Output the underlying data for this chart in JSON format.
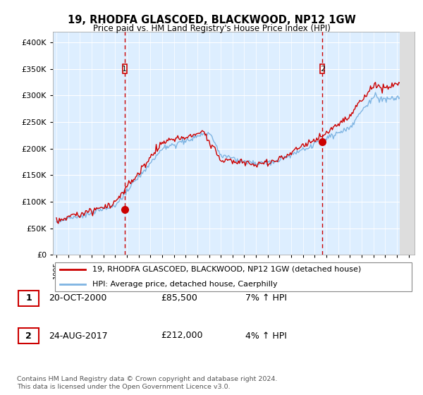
{
  "title": "19, RHODFA GLASCOED, BLACKWOOD, NP12 1GW",
  "subtitle": "Price paid vs. HM Land Registry's House Price Index (HPI)",
  "legend_line1": "19, RHODFA GLASCOED, BLACKWOOD, NP12 1GW (detached house)",
  "legend_line2": "HPI: Average price, detached house, Caerphilly",
  "sale1_date": "20-OCT-2000",
  "sale1_price": "£85,500",
  "sale1_hpi": "7% ↑ HPI",
  "sale2_date": "24-AUG-2017",
  "sale2_price": "£212,000",
  "sale2_hpi": "4% ↑ HPI",
  "footer": "Contains HM Land Registry data © Crown copyright and database right 2024.\nThis data is licensed under the Open Government Licence v3.0.",
  "hpi_color": "#7eb4e2",
  "price_color": "#cc0000",
  "vline_color": "#cc0000",
  "bg_color": "#ddeeff",
  "ylim": [
    0,
    420000
  ],
  "yticks": [
    0,
    50000,
    100000,
    150000,
    200000,
    250000,
    300000,
    350000,
    400000
  ],
  "xlim_start": 1994.7,
  "xlim_end": 2025.5,
  "sale1_year": 2000.8,
  "sale1_price_val": 85500,
  "sale2_year": 2017.65,
  "sale2_price_val": 212000
}
